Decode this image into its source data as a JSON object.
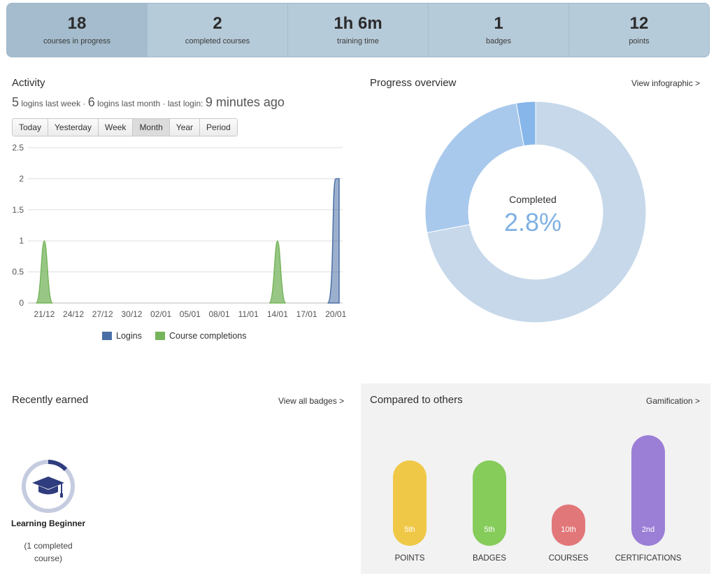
{
  "stats": [
    {
      "value": "18",
      "label": "courses in progress"
    },
    {
      "value": "2",
      "label": "completed courses"
    },
    {
      "value": "1h 6m",
      "label": "training time"
    },
    {
      "value": "1",
      "label": "badges"
    },
    {
      "value": "12",
      "label": "points"
    }
  ],
  "activity": {
    "title": "Activity",
    "logins_week": "5",
    "logins_week_text": "logins last week ·",
    "logins_month": "6",
    "logins_month_text": "logins last month · last login:",
    "last_login": "9 minutes ago",
    "periods": [
      "Today",
      "Yesterday",
      "Week",
      "Month",
      "Year",
      "Period"
    ],
    "active_period": "Month"
  },
  "chart_data": {
    "type": "area",
    "categories": [
      "21/12",
      "24/12",
      "27/12",
      "30/12",
      "02/01",
      "05/01",
      "08/01",
      "11/01",
      "14/01",
      "17/01",
      "20/01"
    ],
    "x_days": [
      "21/12",
      "21/01"
    ],
    "ylim": [
      0,
      2.5
    ],
    "yticks": [
      "2.5",
      "2",
      "1.5",
      "1",
      "0.5",
      "0"
    ],
    "series": [
      {
        "name": "Logins",
        "color": "#4a6fa5",
        "points": [
          [
            "20/01",
            2
          ],
          [
            "21/01",
            2
          ]
        ]
      },
      {
        "name": "Course completions",
        "color": "#76b45c",
        "points": [
          [
            "21/12",
            1
          ],
          [
            "14/01",
            1
          ]
        ]
      }
    ],
    "grid": true,
    "legend": "bottom"
  },
  "progress": {
    "title": "Progress overview",
    "link": "View infographic >",
    "center_label": "Completed",
    "completed_percent": "2.8%",
    "segments": [
      {
        "name": "completed",
        "fraction": 0.028,
        "color": "#86b6ea"
      },
      {
        "name": "in progress",
        "fraction": 0.252,
        "color": "#a9c9ec"
      },
      {
        "name": "not started",
        "fraction": 0.72,
        "color": "#c6d8ea"
      }
    ]
  },
  "earned": {
    "title": "Recently earned",
    "link": "View all badges >",
    "badge_name": "Learning Beginner",
    "badge_sub": "(1 completed course)"
  },
  "compare": {
    "title": "Compared to others",
    "link": "Gamification >",
    "items": [
      {
        "label": "POINTS",
        "rank": "5th",
        "color": "#f0c847",
        "level": 0.67
      },
      {
        "label": "BADGES",
        "rank": "5th",
        "color": "#86cc5b",
        "level": 0.67
      },
      {
        "label": "COURSES",
        "rank": "10th",
        "color": "#e2777a",
        "level": 0.1
      },
      {
        "label": "CERTIFICATIONS",
        "rank": "2nd",
        "color": "#9b7fd6",
        "level": 1.0
      }
    ]
  }
}
